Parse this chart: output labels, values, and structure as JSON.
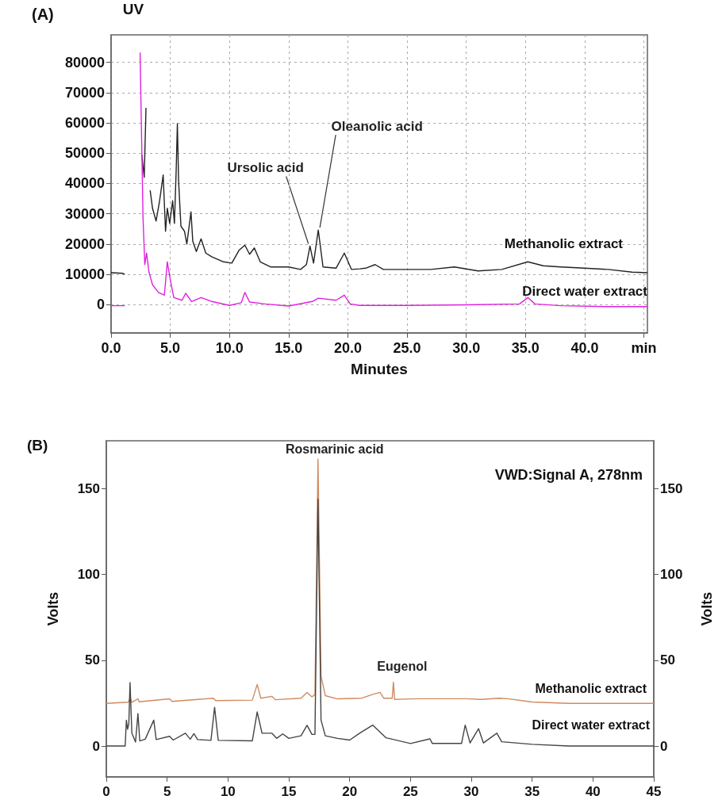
{
  "chart_data": [
    {
      "type": "line",
      "title": "(A)",
      "xlabel": "Minutes",
      "grid": true,
      "marker": "none",
      "annotations": [
        "UV",
        {
          "text": "Ursolic acid",
          "x": 16.8,
          "y": 19300
        },
        {
          "text": "Oleanolic acid",
          "x": 17.5,
          "y": 24600
        }
      ],
      "xlim": [
        0,
        45.3
      ],
      "xticks": [
        {
          "value": 0,
          "label": "0.0"
        },
        {
          "value": 5,
          "label": "5.0"
        },
        {
          "value": 10,
          "label": "10.0"
        },
        {
          "value": 15,
          "label": "15.0"
        },
        {
          "value": 20,
          "label": "20.0"
        },
        {
          "value": 25,
          "label": "25.0"
        },
        {
          "value": 30,
          "label": "30.0"
        },
        {
          "value": 35,
          "label": "35.0"
        },
        {
          "value": 40,
          "label": "40.0"
        },
        {
          "value": 45,
          "label": "min"
        }
      ],
      "ylim": [
        -9400,
        89100
      ],
      "yticks": [
        0,
        10000,
        20000,
        30000,
        40000,
        50000,
        60000,
        70000,
        80000
      ],
      "series": [
        {
          "name": "Methanolic extract",
          "color": "#222222",
          "x": [
            0,
            1.0,
            1.15,
            1.25,
            2.45,
            2.6,
            2.8,
            2.95,
            3.05,
            3.2,
            3.3,
            3.5,
            3.8,
            4.1,
            4.4,
            4.6,
            4.75,
            4.95,
            5.2,
            5.35,
            5.5,
            5.6,
            5.7,
            5.9,
            6.2,
            6.4,
            6.75,
            6.9,
            7.2,
            7.6,
            8.0,
            8.5,
            9.5,
            10.2,
            10.8,
            11.3,
            11.7,
            12.1,
            12.6,
            13.5,
            15.0,
            16.0,
            16.5,
            16.8,
            17.1,
            17.5,
            17.9,
            19.0,
            19.7,
            20.3,
            21.0,
            21.5,
            22.3,
            23,
            25,
            27,
            29,
            31,
            33,
            35.2,
            36.5,
            38,
            40,
            42,
            44,
            45.3
          ],
          "values": [
            10500,
            10300,
            10000,
            null,
            null,
            49500,
            42000,
            65000,
            null,
            null,
            37700,
            31800,
            27600,
            34300,
            42800,
            24200,
            31800,
            26800,
            34300,
            26800,
            44500,
            59800,
            41000,
            25900,
            24200,
            20000,
            30600,
            20900,
            17500,
            21700,
            17000,
            15800,
            14100,
            13700,
            17900,
            19600,
            16600,
            18700,
            14100,
            12400,
            12400,
            11600,
            13200,
            19300,
            13700,
            24600,
            12400,
            12000,
            17000,
            11600,
            11800,
            12000,
            13200,
            11600,
            11600,
            11600,
            12400,
            11100,
            11600,
            14100,
            12800,
            12400,
            12000,
            11600,
            10700,
            10500
          ]
        },
        {
          "name": "Direct water extract",
          "color": "#e020e0",
          "x": [
            0,
            1.15,
            1.2,
            2.45,
            2.7,
            2.85,
            3.0,
            3.2,
            3.5,
            4.0,
            4.5,
            4.75,
            5.0,
            5.3,
            6.0,
            6.3,
            6.8,
            7.6,
            8.5,
            10,
            11.0,
            11.3,
            11.7,
            13,
            15,
            17.0,
            17.5,
            19.0,
            19.7,
            20.2,
            21,
            25,
            30,
            34.5,
            35.2,
            35.8,
            38,
            42,
            45.3
          ],
          "values": [
            -400,
            -400,
            null,
            83300,
            28400,
            13200,
            17000,
            10700,
            6500,
            4000,
            3100,
            14100,
            8200,
            2300,
            1400,
            3700,
            1000,
            2300,
            1000,
            -300,
            600,
            4000,
            800,
            200,
            -500,
            1000,
            2100,
            1400,
            3100,
            200,
            -300,
            -300,
            -100,
            200,
            2300,
            200,
            -400,
            -700,
            -700
          ]
        }
      ]
    },
    {
      "type": "line",
      "title": "(B)",
      "ylabel": "Volts",
      "y2label": "Volts",
      "marker": "none",
      "annotations": [
        "VWD:Signal A, 278nm",
        {
          "text": "Rosmarinic acid",
          "x": 17.4,
          "y": 167.4
        },
        {
          "text": "Eugenol",
          "x": 23.6,
          "y": 37.3
        }
      ],
      "xlim": [
        0,
        45
      ],
      "xticks": [
        0,
        5,
        10,
        15,
        20,
        25,
        30,
        35,
        40,
        45
      ],
      "ylim": [
        -18,
        178
      ],
      "yticks": [
        0,
        50,
        100,
        150
      ],
      "y2lim": [
        -18,
        178
      ],
      "y2ticks": [
        0,
        50,
        100,
        150
      ],
      "series": [
        {
          "name": "Methanolic extract",
          "color": "#d08a60",
          "x": [
            0,
            1.8,
            1.95,
            2.1,
            2.6,
            2.7,
            5.2,
            5.4,
            8.8,
            9.0,
            12.0,
            12.4,
            12.7,
            13.6,
            13.9,
            16.0,
            16.5,
            16.9,
            17.15,
            17.4,
            17.65,
            18.0,
            19,
            21,
            21.9,
            22.5,
            22.8,
            23.5,
            23.6,
            23.7,
            25.7,
            29.6,
            30.8,
            32.3,
            33,
            35,
            38,
            45
          ],
          "values": [
            24.9,
            25.6,
            27.9,
            25.5,
            27.5,
            25.8,
            27.5,
            26,
            27.9,
            26.5,
            26.8,
            35.9,
            27.9,
            29,
            27,
            27.9,
            31.2,
            28.7,
            30,
            167.4,
            40.7,
            29.4,
            27.5,
            27.9,
            30.1,
            31.3,
            27.9,
            27.9,
            37.3,
            27.2,
            27.6,
            27.6,
            27.2,
            27.9,
            27.6,
            25.7,
            24.9,
            24.9
          ]
        },
        {
          "name": "Direct water extract",
          "color": "#444444",
          "x": [
            0,
            1.55,
            1.65,
            1.75,
            1.85,
            1.95,
            2.1,
            2.4,
            2.6,
            2.75,
            3.2,
            3.9,
            4.1,
            5.2,
            5.5,
            6.5,
            6.9,
            7.2,
            7.5,
            8.6,
            8.9,
            9.2,
            12.0,
            12.4,
            12.8,
            13.6,
            14.0,
            14.5,
            15,
            16.0,
            16.5,
            16.9,
            17.15,
            17.4,
            17.65,
            18.0,
            19,
            20,
            20.9,
            21.9,
            23.0,
            25,
            26.6,
            26.8,
            29.2,
            29.5,
            29.9,
            30.6,
            31,
            32.1,
            32.5,
            35,
            38,
            45
          ],
          "values": [
            0,
            0,
            15.1,
            9.8,
            12.8,
            37,
            7.5,
            2.3,
            18.9,
            3,
            4,
            15.1,
            3.8,
            5.7,
            3.5,
            7.5,
            4,
            7.2,
            3.8,
            3.3,
            22.6,
            3.3,
            3,
            19.9,
            7.5,
            7.5,
            4.5,
            7.1,
            4.5,
            6,
            12.1,
            6.8,
            6.8,
            144,
            15.1,
            6,
            4.5,
            3.5,
            7.8,
            12.2,
            4.8,
            1.5,
            4.2,
            1.5,
            1.5,
            12.2,
            1.8,
            10.1,
            1.8,
            7.5,
            2.5,
            1,
            0,
            0
          ]
        }
      ]
    }
  ]
}
